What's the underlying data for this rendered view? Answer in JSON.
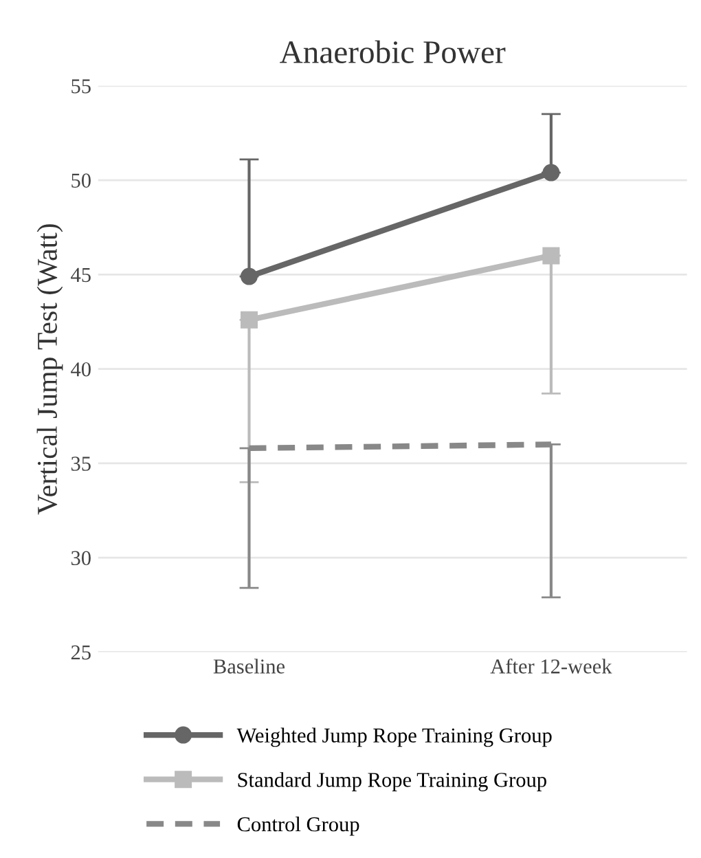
{
  "chart_data": {
    "type": "line",
    "title": "Anaerobic Power",
    "ylabel": "Vertical Jump Test (Watt)",
    "categories": [
      "Baseline",
      "After 12-week"
    ],
    "series": [
      {
        "name": "Weighted Jump Rope Training Group",
        "color": "#666666",
        "values": [
          44.9,
          50.4
        ],
        "errors": [
          [
            44.9,
            51.1
          ],
          [
            50.4,
            53.5
          ]
        ],
        "marker": "circle",
        "line_style": "solid"
      },
      {
        "name": "Standard Jump Rope Training Group",
        "color": "#bbbbbb",
        "values": [
          42.6,
          46.0
        ],
        "errors": [
          [
            34.0,
            42.6
          ],
          [
            38.7,
            46.0
          ]
        ],
        "marker": "square",
        "line_style": "solid"
      },
      {
        "name": "Control Group",
        "color": "#888888",
        "values": [
          35.8,
          36.0
        ],
        "errors": [
          [
            28.4,
            35.8
          ],
          [
            27.9,
            36.0
          ]
        ],
        "marker": "none",
        "line_style": "dashed"
      }
    ],
    "ylim": [
      25,
      55
    ],
    "yticks": [
      25,
      30,
      35,
      40,
      45,
      50,
      55
    ],
    "grid": "y",
    "legend": "bottom"
  }
}
